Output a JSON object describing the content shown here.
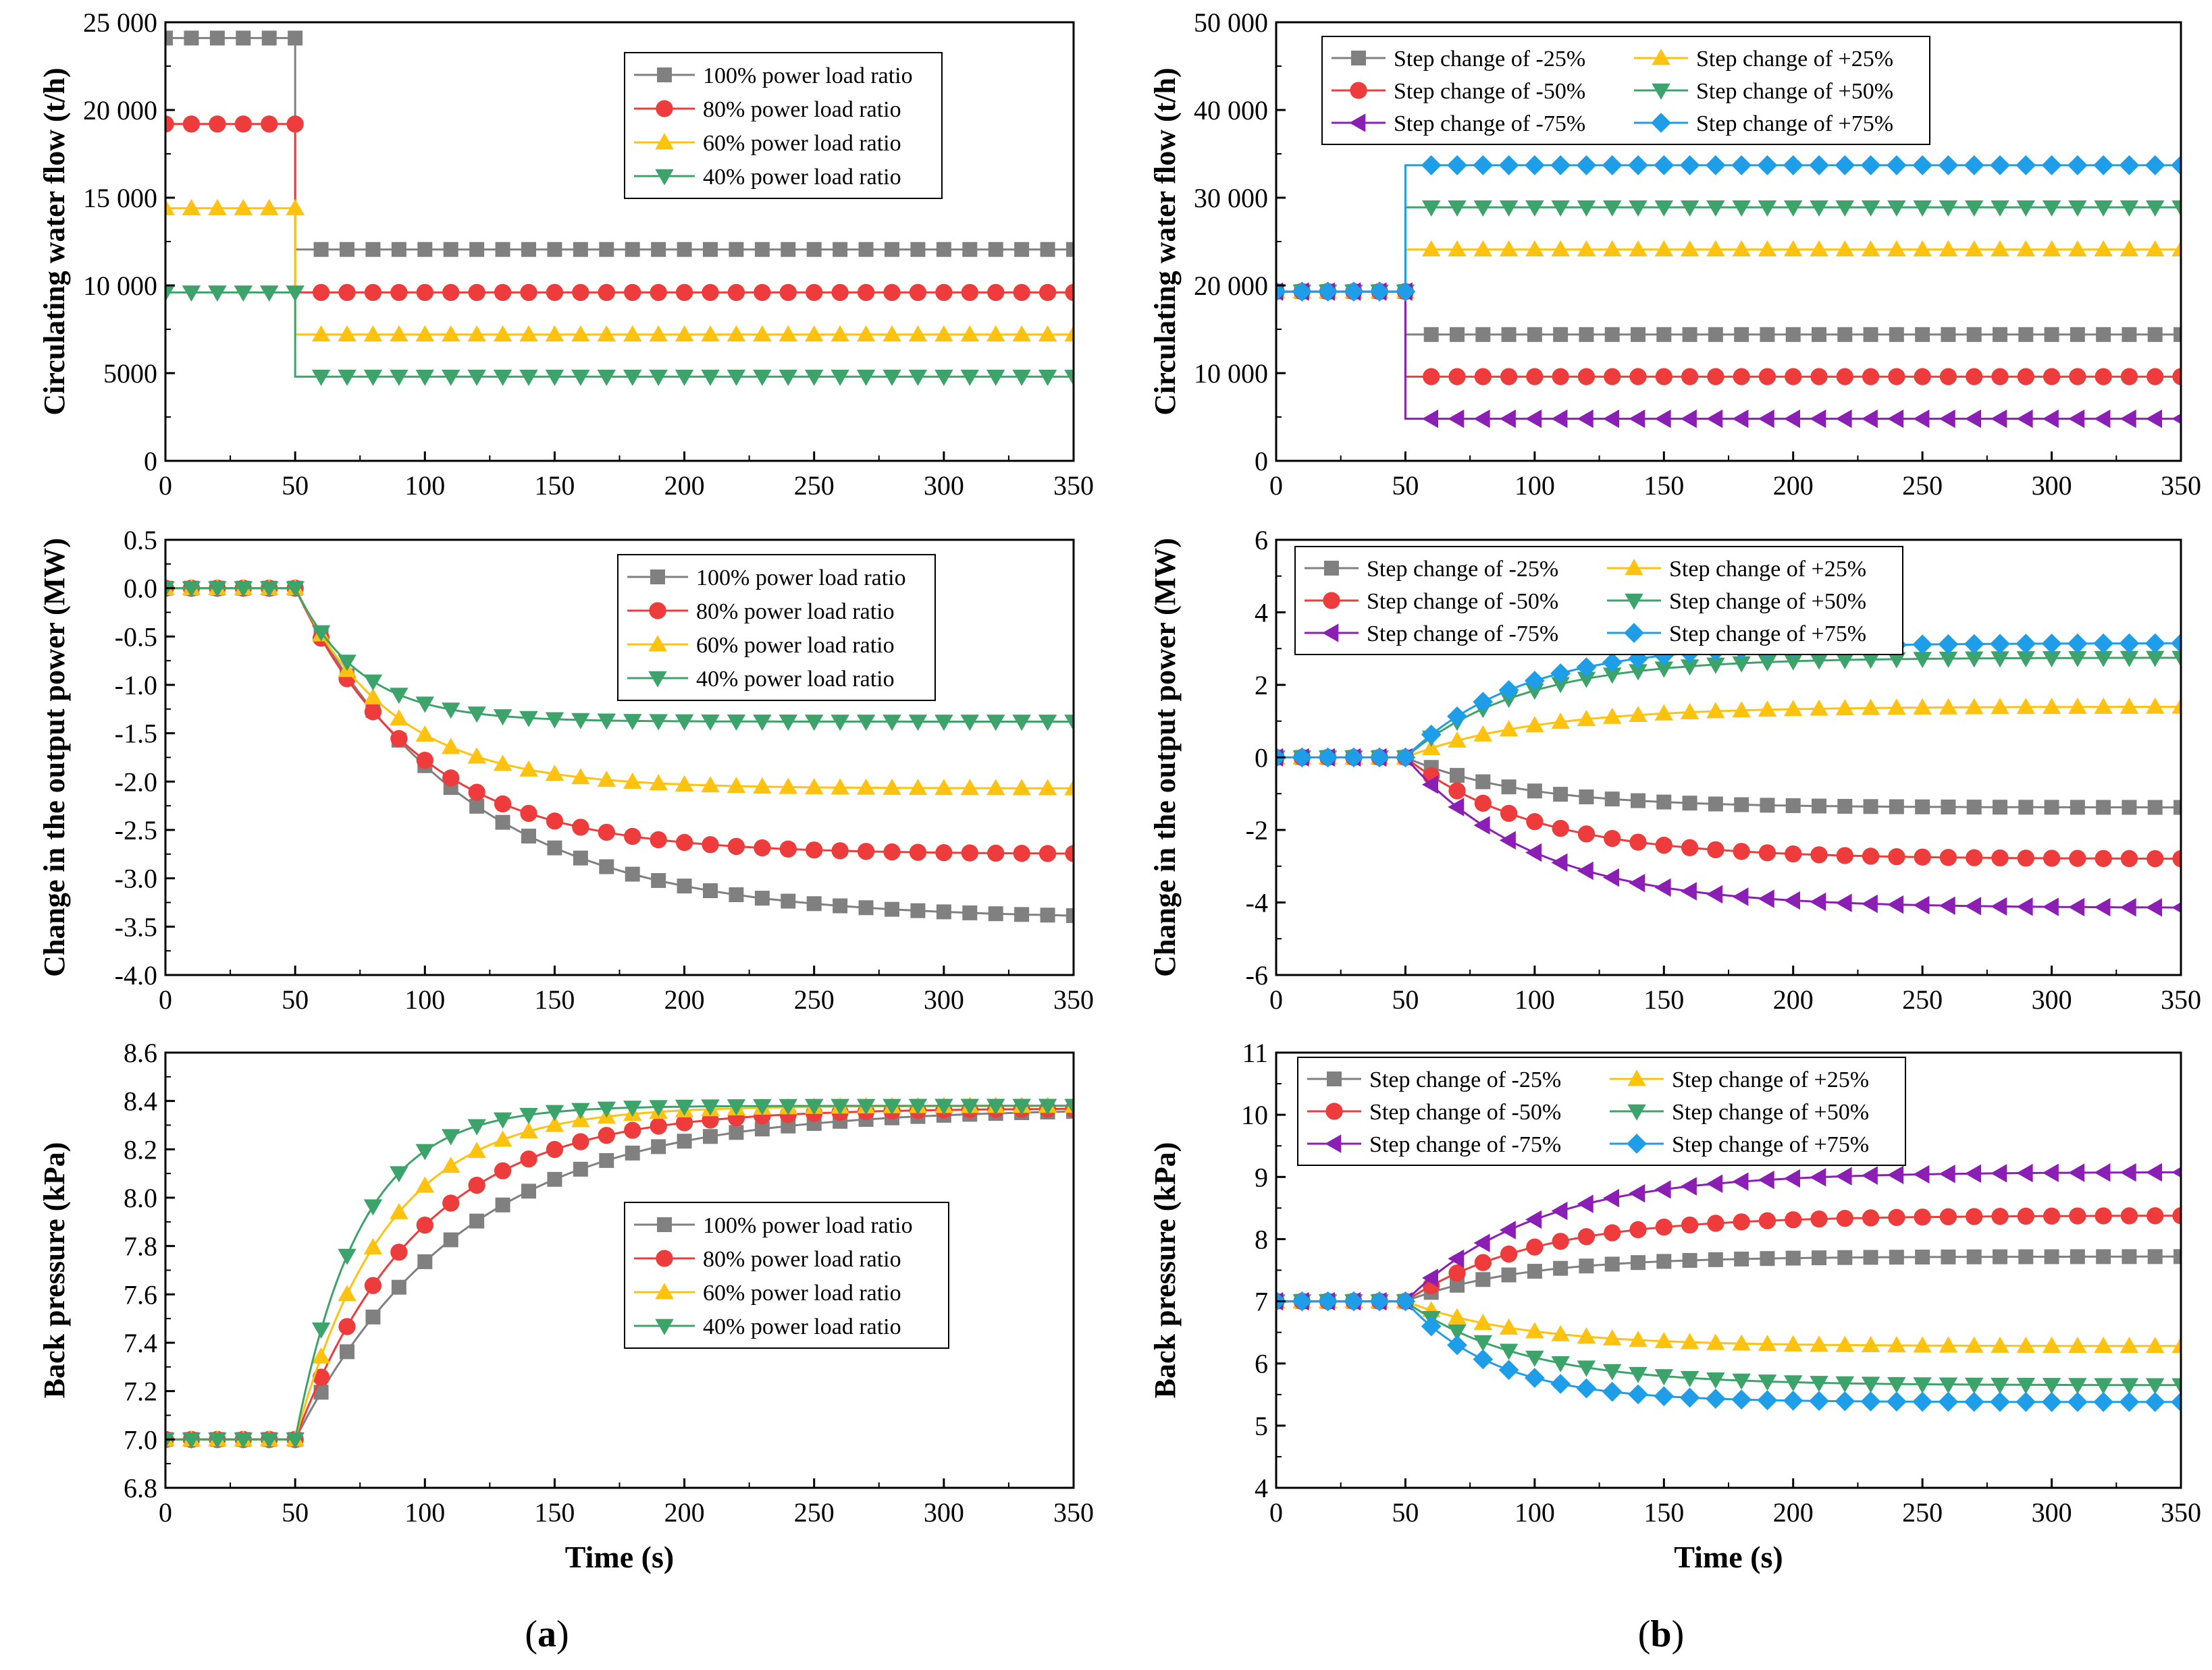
{
  "captions": {
    "a": "a",
    "b": "b"
  },
  "colors": {
    "gray": "#808080",
    "red": "#EE3B3B",
    "yellow": "#FFC20E",
    "green": "#3CA36A",
    "purple": "#8B1FB5",
    "blue": "#1E9EE8"
  },
  "chart_data": [
    {
      "id": "a1",
      "type": "line",
      "xlabel": "",
      "ylabel": "Circulating water flow (t/h)",
      "xlim": [
        0,
        350
      ],
      "ylim": [
        0,
        25000
      ],
      "xticks": [
        "0",
        "50",
        "100",
        "150",
        "200",
        "250",
        "300",
        "350"
      ],
      "yticks": [
        "0",
        "5000",
        "10 000",
        "15 000",
        "20 000",
        "25 000"
      ],
      "legend_position": "top-right",
      "series": [
        {
          "name": "100% power load ratio",
          "marker": "square",
          "color": "gray",
          "before": 24100,
          "after": 12050
        },
        {
          "name": "80% power load ratio",
          "marker": "circle",
          "color": "red",
          "before": 19200,
          "after": 9600
        },
        {
          "name": "60% power load ratio",
          "marker": "triangle-up",
          "color": "yellow",
          "before": 14400,
          "after": 7200
        },
        {
          "name": "40% power load ratio",
          "marker": "triangle-down",
          "color": "green",
          "before": 9600,
          "after": 4800
        }
      ]
    },
    {
      "id": "a2",
      "type": "line",
      "xlabel": "",
      "ylabel": "Change in the output power (MW)",
      "xlim": [
        0,
        350
      ],
      "ylim": [
        -4.0,
        0.5
      ],
      "xticks": [
        "0",
        "50",
        "100",
        "150",
        "200",
        "250",
        "300",
        "350"
      ],
      "yticks": [
        "-4.0",
        "-3.5",
        "-3.0",
        "-2.5",
        "-2.0",
        "-1.5",
        "-1.0",
        "-0.5",
        "0.0",
        "0.5"
      ],
      "legend_position": "top-right",
      "series": [
        {
          "name": "100% power load ratio",
          "marker": "square",
          "color": "gray",
          "before": 0,
          "final": -3.42,
          "tau": 65
        },
        {
          "name": "80% power load ratio",
          "marker": "circle",
          "color": "red",
          "before": 0,
          "final": -2.75,
          "tau": 48
        },
        {
          "name": "60% power load ratio",
          "marker": "triangle-up",
          "color": "yellow",
          "before": 0,
          "final": -2.07,
          "tau": 38
        },
        {
          "name": "40% power load ratio",
          "marker": "triangle-down",
          "color": "green",
          "before": 0,
          "final": -1.38,
          "tau": 25
        }
      ]
    },
    {
      "id": "a3",
      "type": "line",
      "xlabel": "Time (s)",
      "ylabel": "Back pressure (kPa)",
      "xlim": [
        0,
        350
      ],
      "ylim": [
        6.8,
        8.6
      ],
      "xticks": [
        "0",
        "50",
        "100",
        "150",
        "200",
        "250",
        "300",
        "350"
      ],
      "yticks": [
        "6.8",
        "7.0",
        "7.2",
        "7.4",
        "7.6",
        "7.8",
        "8.0",
        "8.2",
        "8.4",
        "8.6"
      ],
      "legend_position": "center-right",
      "series": [
        {
          "name": "100% power load ratio",
          "marker": "square",
          "color": "gray",
          "before": 7.0,
          "final": 8.37,
          "tau": 65
        },
        {
          "name": "80% power load ratio",
          "marker": "circle",
          "color": "red",
          "before": 7.0,
          "final": 8.37,
          "tau": 48
        },
        {
          "name": "60% power load ratio",
          "marker": "triangle-up",
          "color": "yellow",
          "before": 7.0,
          "final": 8.38,
          "tau": 35
        },
        {
          "name": "40% power load ratio",
          "marker": "triangle-down",
          "color": "green",
          "before": 7.0,
          "final": 8.38,
          "tau": 25
        }
      ]
    },
    {
      "id": "b1",
      "type": "line",
      "xlabel": "",
      "ylabel": "Circulating water flow (t/h)",
      "xlim": [
        0,
        350
      ],
      "ylim": [
        0,
        50000
      ],
      "xticks": [
        "0",
        "50",
        "100",
        "150",
        "200",
        "250",
        "300",
        "350"
      ],
      "yticks": [
        "0",
        "10 000",
        "20 000",
        "30 000",
        "40 000",
        "50 000"
      ],
      "legend_position": "top",
      "series": [
        {
          "name": "Step change of -25%",
          "marker": "square",
          "color": "gray",
          "before": 19300,
          "after": 14400
        },
        {
          "name": "Step change of +25%",
          "marker": "triangle-up",
          "color": "yellow",
          "before": 19300,
          "after": 24100
        },
        {
          "name": "Step change of -50%",
          "marker": "circle",
          "color": "red",
          "before": 19300,
          "after": 9600
        },
        {
          "name": "Step change of +50%",
          "marker": "triangle-down",
          "color": "green",
          "before": 19300,
          "after": 28900
        },
        {
          "name": "Step change of -75%",
          "marker": "triangle-left",
          "color": "purple",
          "before": 19300,
          "after": 4800
        },
        {
          "name": "Step change of +75%",
          "marker": "diamond",
          "color": "blue",
          "before": 19300,
          "after": 33700
        }
      ]
    },
    {
      "id": "b2",
      "type": "line",
      "xlabel": "",
      "ylabel": "Change in the output power (MW)",
      "xlim": [
        0,
        350
      ],
      "ylim": [
        -6,
        6
      ],
      "xticks": [
        "0",
        "50",
        "100",
        "150",
        "200",
        "250",
        "300",
        "350"
      ],
      "yticks": [
        "-6",
        "-4",
        "-2",
        "0",
        "2",
        "4",
        "6"
      ],
      "legend_position": "top",
      "series": [
        {
          "name": "Step change of -25%",
          "marker": "square",
          "color": "gray",
          "before": 0,
          "final": -1.38,
          "tau": 45
        },
        {
          "name": "Step change of +25%",
          "marker": "triangle-up",
          "color": "yellow",
          "before": 0,
          "final": 1.4,
          "tau": 50
        },
        {
          "name": "Step change of -50%",
          "marker": "circle",
          "color": "red",
          "before": 0,
          "final": -2.8,
          "tau": 50
        },
        {
          "name": "Step change of +50%",
          "marker": "triangle-down",
          "color": "green",
          "before": 0,
          "final": 2.75,
          "tau": 45
        },
        {
          "name": "Step change of -75%",
          "marker": "triangle-left",
          "color": "purple",
          "before": 0,
          "final": -4.15,
          "tau": 50
        },
        {
          "name": "Step change of +75%",
          "marker": "diamond",
          "color": "blue",
          "before": 0,
          "final": 3.15,
          "tau": 45
        }
      ]
    },
    {
      "id": "b3",
      "type": "line",
      "xlabel": "Time (s)",
      "ylabel": "Back pressure (kPa)",
      "xlim": [
        0,
        350
      ],
      "ylim": [
        4,
        11
      ],
      "xticks": [
        "0",
        "50",
        "100",
        "150",
        "200",
        "250",
        "300",
        "350"
      ],
      "yticks": [
        "4",
        "5",
        "6",
        "7",
        "8",
        "9",
        "10",
        "11"
      ],
      "legend_position": "top",
      "series": [
        {
          "name": "Step change of -25%",
          "marker": "square",
          "color": "gray",
          "before": 7.0,
          "final": 7.72,
          "tau": 45
        },
        {
          "name": "Step change of +25%",
          "marker": "triangle-up",
          "color": "yellow",
          "before": 7.0,
          "final": 6.28,
          "tau": 45
        },
        {
          "name": "Step change of -50%",
          "marker": "circle",
          "color": "red",
          "before": 7.0,
          "final": 8.38,
          "tau": 50
        },
        {
          "name": "Step change of +50%",
          "marker": "triangle-down",
          "color": "green",
          "before": 7.0,
          "final": 5.65,
          "tau": 45
        },
        {
          "name": "Step change of -75%",
          "marker": "triangle-left",
          "color": "purple",
          "before": 7.0,
          "final": 9.08,
          "tau": 50
        },
        {
          "name": "Step change of +75%",
          "marker": "diamond",
          "color": "blue",
          "before": 7.0,
          "final": 5.38,
          "tau": 35
        }
      ]
    }
  ]
}
